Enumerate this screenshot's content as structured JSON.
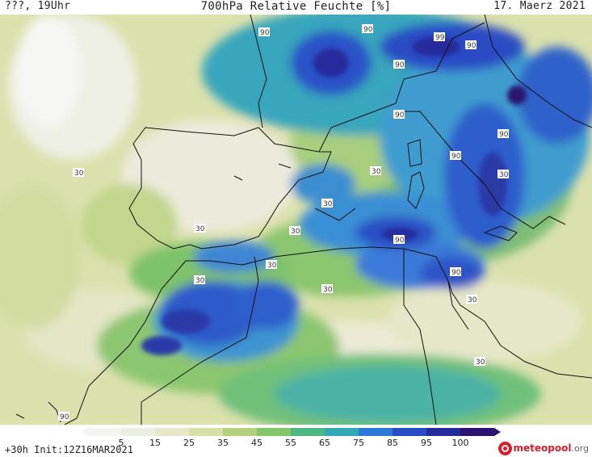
{
  "header": {
    "left": "???, 19Uhr",
    "title": "700hPa Relative Feuchte [%]",
    "date": "17. Maerz 2021"
  },
  "footer": {
    "init": "+30h Init:12Z16MAR2021",
    "logo_name": "meteopool",
    "logo_tld": ".org"
  },
  "colorbar": {
    "ticks": [
      "5",
      "15",
      "25",
      "35",
      "45",
      "55",
      "65",
      "75",
      "85",
      "95",
      "100"
    ],
    "colors": [
      "#f4f4f2",
      "#ebefe0",
      "#e6e8c8",
      "#d6dfa6",
      "#b4d07e",
      "#86c66a",
      "#4fb882",
      "#34a8b4",
      "#2b78d8",
      "#2a4cc4",
      "#262b9c",
      "#2a1470"
    ]
  },
  "contour_labels": [
    "90",
    "90",
    "99",
    "90",
    "90",
    "90",
    "90",
    "90",
    "90",
    "30",
    "30",
    "30",
    "30",
    "30",
    "30",
    "30",
    "30",
    "30",
    "30",
    "30",
    "90",
    "90"
  ]
}
